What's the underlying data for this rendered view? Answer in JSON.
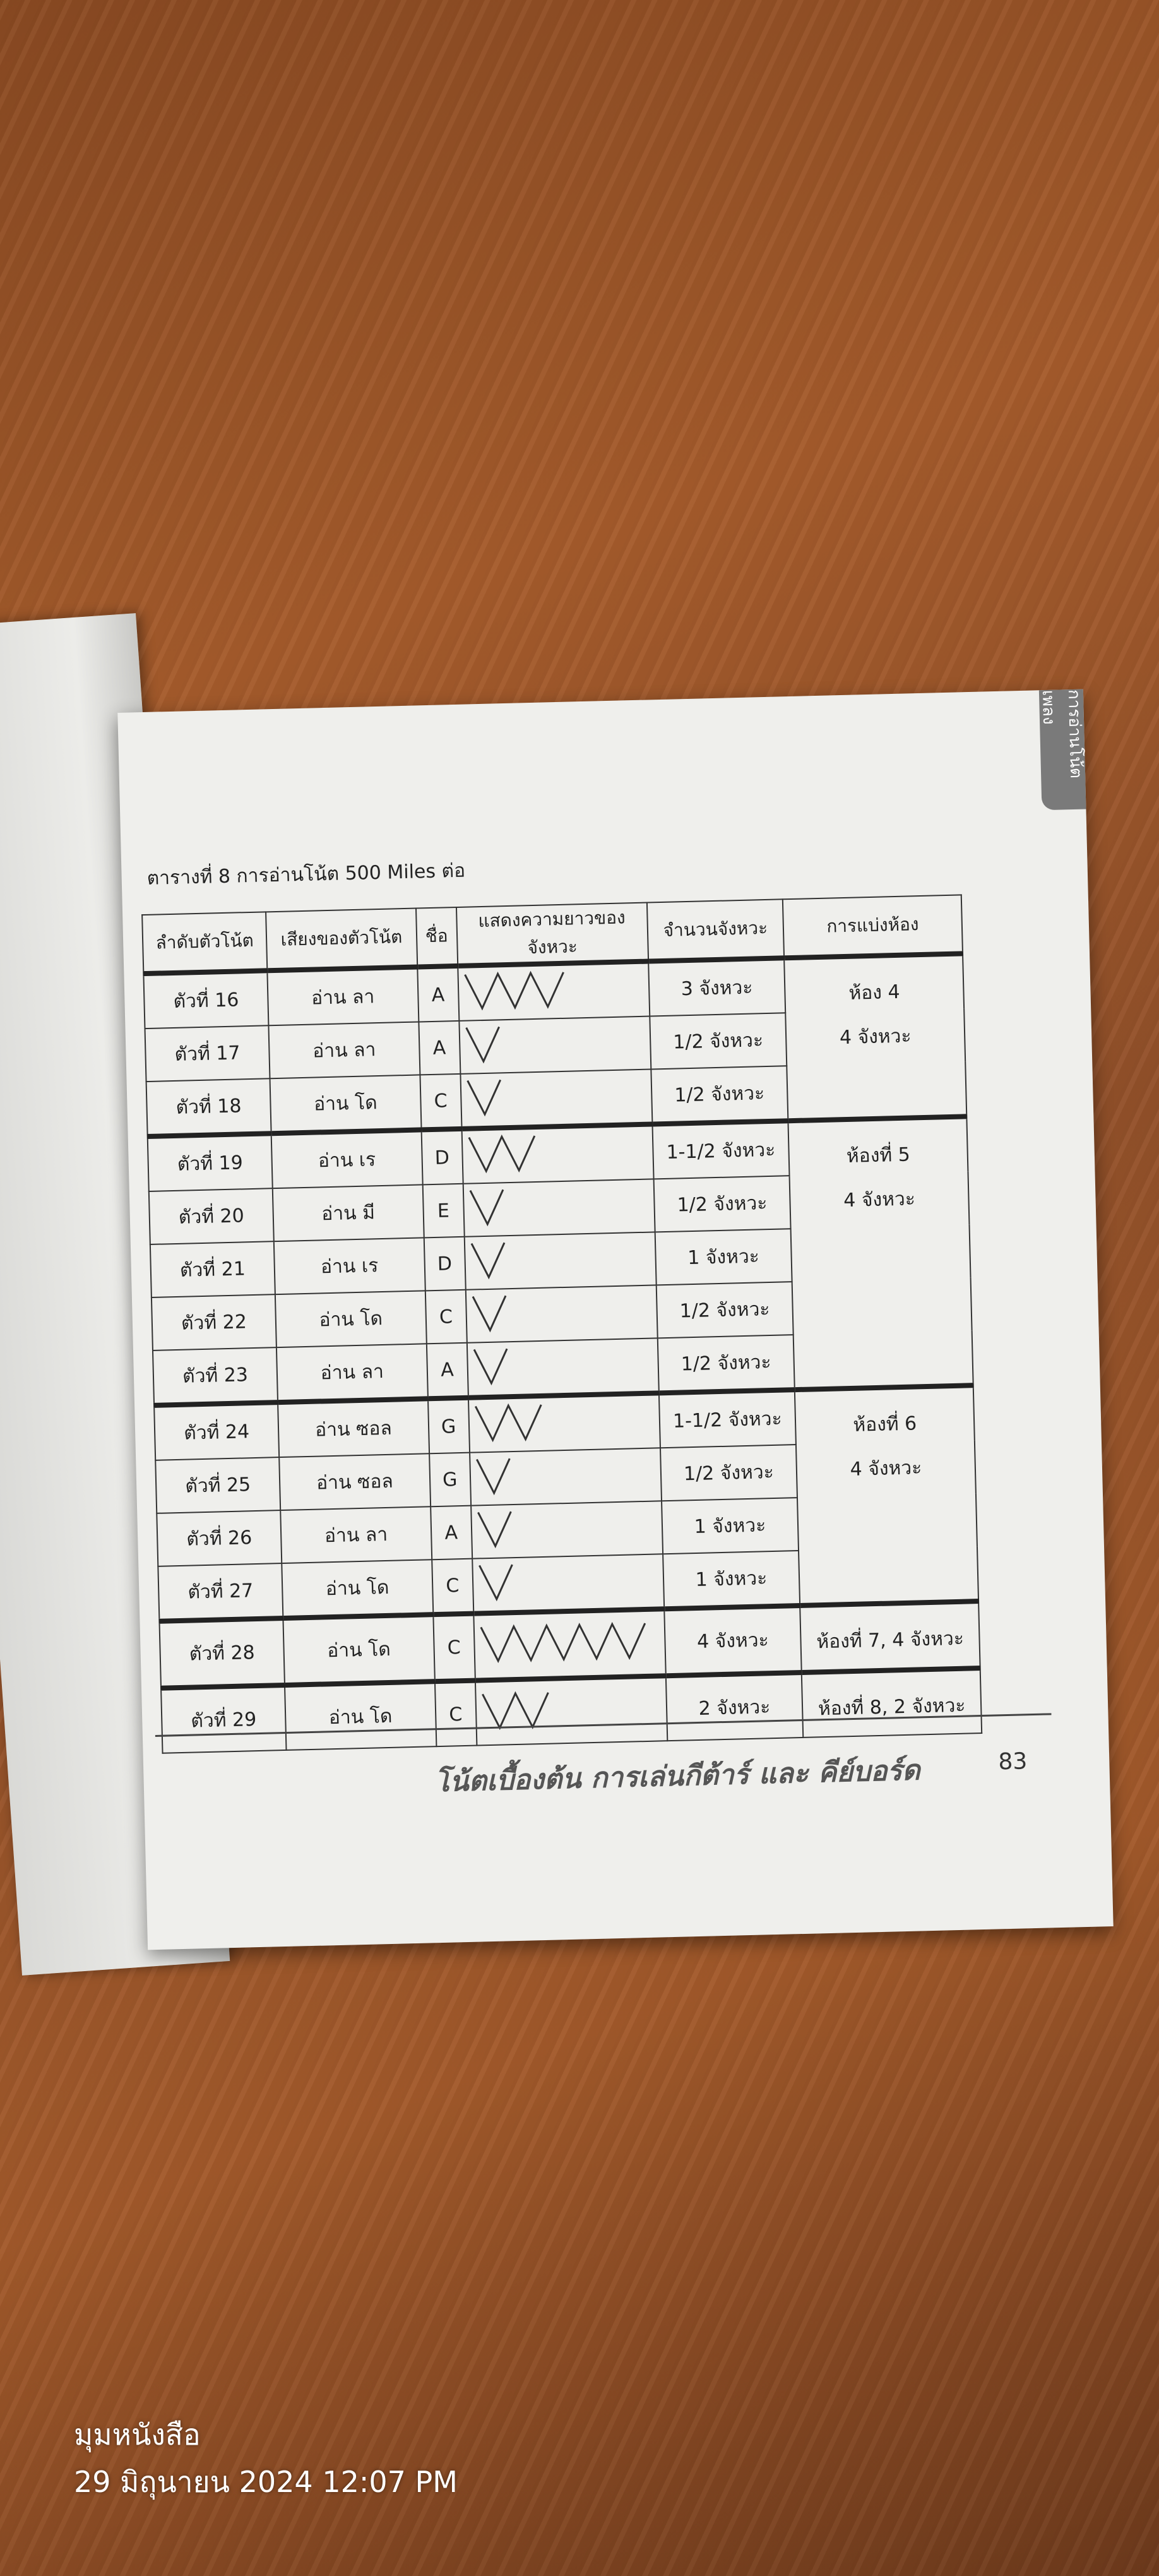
{
  "side_tab": "การอ่านโน้ตเพลง",
  "caption": "ตารางที่ 8 การอ่านโน้ต 500 Miles ต่อ",
  "table": {
    "headers": [
      "ลำดับตัวโน้ต",
      "เสียงของตัวโน้ต",
      "ชื่อ",
      "แสดงความยาวของจังหวะ",
      "จำนวนจังหวะ",
      "การแบ่งห้อง"
    ],
    "groups": [
      {
        "room": "ห้อง 4",
        "room_beats": "4 จังหวะ",
        "rows": [
          [
            "ตัวที่ 16",
            "อ่าน ลา",
            "A",
            "3 จังหวะ"
          ],
          [
            "ตัวที่ 17",
            "อ่าน ลา",
            "A",
            "1/2 จังหวะ"
          ],
          [
            "ตัวที่ 18",
            "อ่าน โด",
            "C",
            "1/2 จังหวะ"
          ]
        ]
      },
      {
        "room": "ห้องที่ 5",
        "room_beats": "4 จังหวะ",
        "rows": [
          [
            "ตัวที่ 19",
            "อ่าน เร",
            "D",
            "1-1/2 จังหวะ"
          ],
          [
            "ตัวที่ 20",
            "อ่าน มี",
            "E",
            "1/2 จังหวะ"
          ],
          [
            "ตัวที่ 21",
            "อ่าน เร",
            "D",
            "1 จังหวะ"
          ],
          [
            "ตัวที่ 22",
            "อ่าน โด",
            "C",
            "1/2 จังหวะ"
          ],
          [
            "ตัวที่ 23",
            "อ่าน ลา",
            "A",
            "1/2 จังหวะ"
          ]
        ]
      },
      {
        "room": "ห้องที่ 6",
        "room_beats": "4 จังหวะ",
        "rows": [
          [
            "ตัวที่ 24",
            "อ่าน ซอล",
            "G",
            "1-1/2 จังหวะ"
          ],
          [
            "ตัวที่ 25",
            "อ่าน ซอล",
            "G",
            "1/2 จังหวะ"
          ],
          [
            "ตัวที่ 26",
            "อ่าน ลา",
            "A",
            "1 จังหวะ"
          ],
          [
            "ตัวที่ 27",
            "อ่าน โด",
            "C",
            "1 จังหวะ"
          ]
        ]
      },
      {
        "room": "ห้องที่ 7, 4 จังหวะ",
        "rows": [
          [
            "ตัวที่ 28",
            "อ่าน โด",
            "C",
            "4 จังหวะ"
          ]
        ]
      },
      {
        "room": "ห้องที่ 8, 2 จังหวะ",
        "rows": [
          [
            "ตัวที่ 29",
            "อ่าน โด",
            "C",
            "2 จังหวะ"
          ]
        ]
      }
    ]
  },
  "footer": "โน้ตเบื้องต้น การเล่นกีต้าร์ และ คีย์บอร์ด",
  "page_number": "83",
  "watermark": {
    "place": "มุมหนังสือ",
    "datetime": "29 มิถุนายน 2024 12:07 PM"
  }
}
